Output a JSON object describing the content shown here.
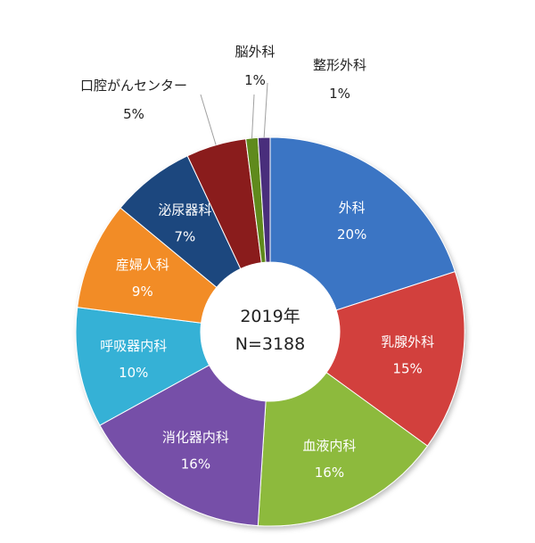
{
  "chart_data": {
    "type": "pie",
    "subtype": "doughnut",
    "center_label": {
      "year": "2019年",
      "total": "N=3188"
    },
    "series": [
      {
        "name": "外科",
        "value": 20,
        "value_label": "20%",
        "color": "#3A74C4",
        "label_placement": "inside"
      },
      {
        "name": "乳腺外科",
        "value": 15,
        "value_label": "15%",
        "color": "#D23F3C",
        "label_placement": "inside"
      },
      {
        "name": "血液内科",
        "value": 16,
        "value_label": "16%",
        "color": "#8DBA3C",
        "label_placement": "inside"
      },
      {
        "name": "消化器内科",
        "value": 16,
        "value_label": "16%",
        "color": "#7650A8",
        "label_placement": "inside"
      },
      {
        "name": "呼吸器内科",
        "value": 10,
        "value_label": "10%",
        "color": "#36B1D6",
        "label_placement": "inside"
      },
      {
        "name": "産婦人科",
        "value": 9,
        "value_label": "9%",
        "color": "#F28C28",
        "label_placement": "inside"
      },
      {
        "name": "泌尿器科",
        "value": 7,
        "value_label": "7%",
        "color": "#1F477E",
        "label_placement": "inside"
      },
      {
        "name": "口腔がんセンター",
        "value": 5,
        "value_label": "5%",
        "color": "#8A1C1C",
        "label_placement": "outside-left"
      },
      {
        "name": "脳外科",
        "value": 1,
        "value_label": "1%",
        "color": "#5E8A1E",
        "label_placement": "outside-top"
      },
      {
        "name": "整形外科",
        "value": 1,
        "value_label": "1%",
        "color": "#4A2F7C",
        "label_placement": "outside-right"
      }
    ],
    "legend": "none",
    "label_text_color_inside": "#ffffff",
    "label_text_color_outside": "#222222"
  }
}
